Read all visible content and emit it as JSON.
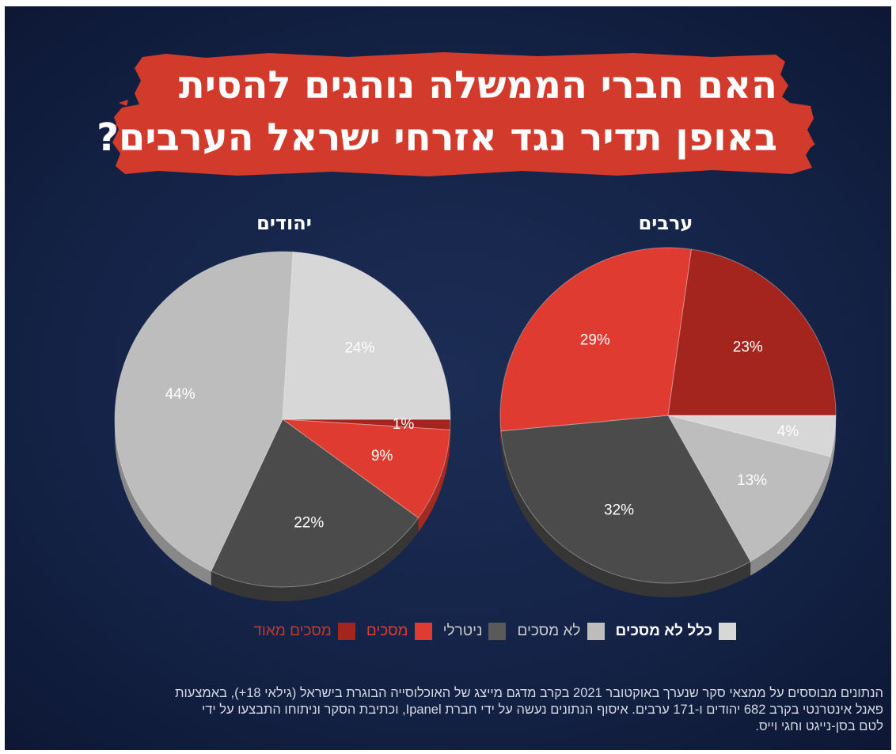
{
  "title": {
    "line1": "האם חברי הממשלה נוהגים להסית",
    "line2": "באופן תדיר נגד אזרחי ישראל הערבים?"
  },
  "colors": {
    "background": "#142347",
    "banner": "#d23a2b",
    "strongly_agree": "#a3251d",
    "agree": "#e03b30",
    "neutral": "#4b4b4b",
    "disagree": "#bdbdbd",
    "strongly_disagree": "#d7d7d7"
  },
  "legend": [
    {
      "key": "strongly_disagree",
      "label": "כלל לא מסכים",
      "color": "#d7d7d7",
      "text_color": "#ffffff",
      "bold": true
    },
    {
      "key": "disagree",
      "label": "לא מסכים",
      "color": "#bdbdbd",
      "text_color": "#c9c9c9",
      "bold": false
    },
    {
      "key": "neutral",
      "label": "ניטרלי",
      "color": "#5a5a5a",
      "text_color": "#c9c9c9",
      "bold": false
    },
    {
      "key": "agree",
      "label": "מסכים",
      "color": "#e03b30",
      "text_color": "#e03b30",
      "bold": false
    },
    {
      "key": "strongly_agree",
      "label": "מסכים מאוד",
      "color": "#a3251d",
      "text_color": "#c0392b",
      "bold": false
    }
  ],
  "chart_data": [
    {
      "type": "pie",
      "title": "יהודים",
      "slices": [
        {
          "key": "strongly_agree",
          "value": 1,
          "label": "1%"
        },
        {
          "key": "agree",
          "value": 9,
          "label": "9%"
        },
        {
          "key": "neutral",
          "value": 22,
          "label": "22%"
        },
        {
          "key": "disagree",
          "value": 44,
          "label": "44%"
        },
        {
          "key": "strongly_disagree",
          "value": 24,
          "label": "24%"
        }
      ]
    },
    {
      "type": "pie",
      "title": "ערבים",
      "slices": [
        {
          "key": "strongly_disagree",
          "value": 4,
          "label": "4%"
        },
        {
          "key": "disagree",
          "value": 13,
          "label": "13%"
        },
        {
          "key": "neutral",
          "value": 32,
          "label": "32%"
        },
        {
          "key": "agree",
          "value": 29,
          "label": "29%"
        },
        {
          "key": "strongly_agree",
          "value": 23,
          "label": "23%"
        }
      ]
    }
  ],
  "footnote": {
    "line1": "הנתונים מבוססים על ממצאי סקר שנערך באוקטובר 2021 בקרב מדגם מייצג של האוכלוסייה הבוגרת בישראל (גילאי 18+), באמצעות",
    "line2": "פאנל אינטרנטי בקרב 682 יהודים ו-171 ערבים. איסוף הנתונים נעשה על ידי חברת Ipanel, וכתיבת הסקר וניתוחו התבצעו על ידי",
    "line3": "לטם בסן-נייגט וחגי וייס."
  }
}
